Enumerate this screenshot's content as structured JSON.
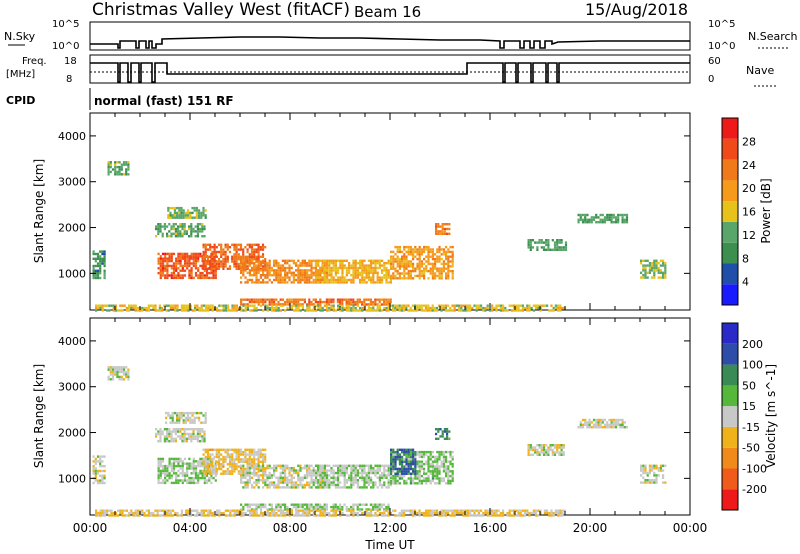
{
  "header": {
    "title": "Christmas Valley West (fitACF)",
    "beam": "Beam 16",
    "date": "15/Aug/2018"
  },
  "strip": {
    "nsky_label": "N.Sky",
    "nsky_ticks": [
      "10^5",
      "10^0"
    ],
    "nsearch_label": "N.Search",
    "nsearch_ticks": [
      "10^5",
      "10^0"
    ],
    "freq_label_1": "Freq.",
    "freq_label_2": "[MHz]",
    "freq_ticks": [
      "18",
      "8"
    ],
    "nave_label": "Nave",
    "nave_ticks": [
      "60",
      "0"
    ],
    "cpid_label": "CPID",
    "cpid_value": "normal (fast) 151 RF"
  },
  "colors": {
    "power": [
      "#1a1aff",
      "#1f4fa8",
      "#3c8f4e",
      "#5aa66a",
      "#e6c21a",
      "#f59a1a",
      "#f07a1a",
      "#f04a1a",
      "#ee1a1a"
    ],
    "velocity": [
      "#ee1a1a",
      "#f05a1a",
      "#f08a1a",
      "#f0b21a",
      "#c8c8c8",
      "#55b83a",
      "#3a8a55",
      "#2e4da8",
      "#2a2ac8"
    ]
  },
  "chart_data": [
    {
      "type": "heatmap",
      "name": "power",
      "ylabel": "Slant Range [km]",
      "xlabel": "",
      "xlim": [
        0,
        24
      ],
      "ylim": [
        200,
        4500
      ],
      "yticks": [
        "1000",
        "2000",
        "3000",
        "4000"
      ],
      "colorbar_label": "Power [dB]",
      "colorbar_ticks": [
        "4",
        "8",
        "12",
        "16",
        "20",
        "24",
        "28"
      ],
      "clim": [
        0,
        32
      ],
      "regions": [
        {
          "x": [
            0.1,
            0.6
          ],
          "y": [
            900,
            1500
          ],
          "v": 9
        },
        {
          "x": [
            0.7,
            1.5
          ],
          "y": [
            3150,
            3450
          ],
          "v": 12
        },
        {
          "x": [
            2.6,
            4.6
          ],
          "y": [
            1800,
            2100
          ],
          "v": 12
        },
        {
          "x": [
            3.0,
            4.6
          ],
          "y": [
            2200,
            2450
          ],
          "v": 13
        },
        {
          "x": [
            2.7,
            5.0
          ],
          "y": [
            900,
            1450
          ],
          "v": 26
        },
        {
          "x": [
            4.5,
            7.0
          ],
          "y": [
            1100,
            1650
          ],
          "v": 25
        },
        {
          "x": [
            6.0,
            9.5
          ],
          "y": [
            800,
            1300
          ],
          "v": 22
        },
        {
          "x": [
            9.0,
            12.0
          ],
          "y": [
            800,
            1300
          ],
          "v": 18
        },
        {
          "x": [
            12.0,
            14.5
          ],
          "y": [
            900,
            1600
          ],
          "v": 20
        },
        {
          "x": [
            13.8,
            14.4
          ],
          "y": [
            1850,
            2100
          ],
          "v": 23
        },
        {
          "x": [
            6.0,
            12.0
          ],
          "y": [
            300,
            450
          ],
          "v": 24
        },
        {
          "x": [
            0.2,
            19.0
          ],
          "y": [
            200,
            320
          ],
          "v": 16
        },
        {
          "x": [
            17.5,
            19.0
          ],
          "y": [
            1500,
            1750
          ],
          "v": 11
        },
        {
          "x": [
            19.5,
            21.5
          ],
          "y": [
            2100,
            2300
          ],
          "v": 11
        },
        {
          "x": [
            22.0,
            23.0
          ],
          "y": [
            900,
            1300
          ],
          "v": 14
        }
      ]
    },
    {
      "type": "heatmap",
      "name": "velocity",
      "ylabel": "Slant Range [km]",
      "xlabel": "Time UT",
      "xlim": [
        0,
        24
      ],
      "ylim": [
        200,
        4500
      ],
      "xticks": [
        "00:00",
        "04:00",
        "08:00",
        "12:00",
        "16:00",
        "20:00",
        "00:00"
      ],
      "yticks": [
        "1000",
        "2000",
        "3000",
        "4000"
      ],
      "colorbar_label": "Velocity [m s^-1]",
      "colorbar_ticks": [
        "-200",
        "-100",
        "-50",
        "-15",
        "15",
        "50",
        "100",
        "200"
      ],
      "clim": [
        -250,
        250
      ],
      "regions": [
        {
          "x": [
            0.1,
            0.6
          ],
          "y": [
            900,
            1500
          ],
          "v": 0
        },
        {
          "x": [
            0.7,
            1.5
          ],
          "y": [
            3150,
            3450
          ],
          "v": 0
        },
        {
          "x": [
            2.6,
            4.6
          ],
          "y": [
            1800,
            2100
          ],
          "v": 0
        },
        {
          "x": [
            3.0,
            4.6
          ],
          "y": [
            2200,
            2450
          ],
          "v": 0
        },
        {
          "x": [
            2.7,
            5.0
          ],
          "y": [
            900,
            1450
          ],
          "v": 30
        },
        {
          "x": [
            4.5,
            7.0
          ],
          "y": [
            1100,
            1650
          ],
          "v": -40
        },
        {
          "x": [
            6.0,
            9.5
          ],
          "y": [
            800,
            1300
          ],
          "v": 0
        },
        {
          "x": [
            9.0,
            12.0
          ],
          "y": [
            800,
            1300
          ],
          "v": 20
        },
        {
          "x": [
            12.0,
            14.5
          ],
          "y": [
            900,
            1600
          ],
          "v": 40
        },
        {
          "x": [
            12.0,
            13.0
          ],
          "y": [
            1100,
            1650
          ],
          "v": 150
        },
        {
          "x": [
            13.8,
            14.4
          ],
          "y": [
            1850,
            2100
          ],
          "v": 120
        },
        {
          "x": [
            6.0,
            12.0
          ],
          "y": [
            300,
            450
          ],
          "v": 30
        },
        {
          "x": [
            0.2,
            19.0
          ],
          "y": [
            200,
            320
          ],
          "v": -30
        },
        {
          "x": [
            17.5,
            19.0
          ],
          "y": [
            1500,
            1750
          ],
          "v": 0
        },
        {
          "x": [
            19.5,
            21.5
          ],
          "y": [
            2100,
            2300
          ],
          "v": 0
        },
        {
          "x": [
            22.0,
            23.0
          ],
          "y": [
            900,
            1300
          ],
          "v": 0
        }
      ]
    }
  ]
}
